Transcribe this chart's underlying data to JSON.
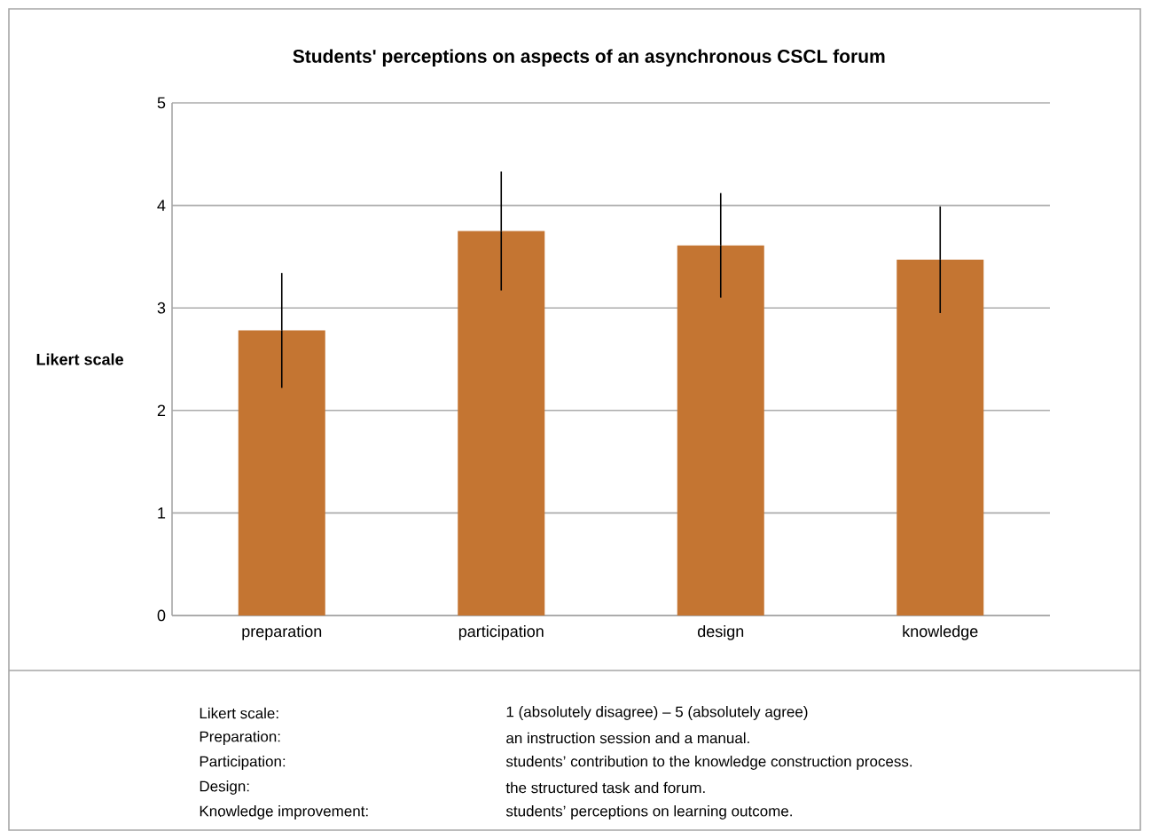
{
  "chart_data": {
    "type": "bar",
    "title": "Students' perceptions on aspects of an asynchronous CSCL forum",
    "ylabel": "Likert scale",
    "categories": [
      "preparation",
      "participation",
      "design",
      "knowledge"
    ],
    "values": [
      2.78,
      3.75,
      3.61,
      3.47
    ],
    "errors": [
      0.56,
      0.58,
      0.51,
      0.52
    ],
    "color": "#c47532",
    "ylim": [
      0,
      5
    ],
    "yticks": [
      0,
      1,
      2,
      3,
      4,
      5
    ],
    "grid": "y",
    "annotations": [
      "Likert scale:",
      "1 (absolutely disagree) – 5 (absolutely agree)",
      "Preparation:",
      "an instruction session and a manual.",
      "Participation:",
      "students’ contribution to the knowledge construction process.",
      "Design:",
      "the structured task and forum.",
      "Knowledge improvement:",
      "students’ perceptions on learning outcome."
    ]
  }
}
